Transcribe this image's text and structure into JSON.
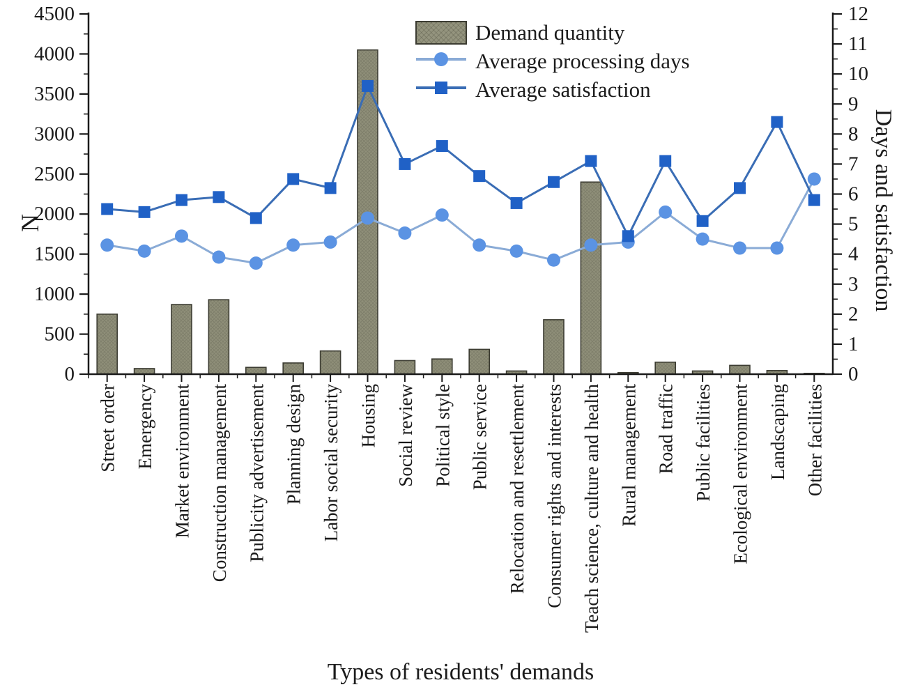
{
  "figure_titles": {
    "x_axis": "Types of residents' demands",
    "left_axis": "N",
    "right_axis": "Days and satisfaction"
  },
  "legend": {
    "items": [
      {
        "label": "Demand quantity",
        "icon": "bar-swatch-icon"
      },
      {
        "label": "Average processing days",
        "icon": "line-circle-icon"
      },
      {
        "label": "Average satisfaction",
        "icon": "line-square-icon"
      }
    ]
  },
  "colors": {
    "bar_fill": "#8F8F79",
    "bar_hatch": "#6e6e5c",
    "bar_border": "#3c3c32",
    "days_line": "#8AABD6",
    "days_marker": "#5B93E3",
    "satisfaction_line": "#3A6DB5",
    "satisfaction_marker": "#2061C6",
    "axis": "#1a1a1a"
  },
  "chart_data": {
    "type": "bar+line",
    "title": "",
    "xlabel": "Types of residents' demands",
    "categories": [
      "Street order",
      "Emergency",
      "Market environment",
      "Construction management",
      "Publicity advertisement",
      "Planning design",
      "Labor social security",
      "Housing",
      "Social review",
      "Political style",
      "Public service",
      "Relocation and resettlement",
      "Consumer rights and interests",
      "Teach science, culture and health",
      "Rural management",
      "Road traffic",
      "Public facilities",
      "Ecological environment",
      "Landscaping",
      "Other facilities"
    ],
    "series": [
      {
        "name": "Demand quantity",
        "type": "bar",
        "axis": "left",
        "values": [
          750,
          70,
          870,
          930,
          85,
          140,
          290,
          4050,
          170,
          190,
          310,
          40,
          680,
          2400,
          20,
          150,
          40,
          110,
          45,
          10
        ]
      },
      {
        "name": "Average processing days",
        "type": "line",
        "marker": "circle",
        "axis": "right",
        "values": [
          4.3,
          4.1,
          4.6,
          3.9,
          3.7,
          4.3,
          4.4,
          5.2,
          4.7,
          5.3,
          4.3,
          4.1,
          3.8,
          4.3,
          4.4,
          5.4,
          4.5,
          4.2,
          4.2,
          6.5
        ]
      },
      {
        "name": "Average satisfaction",
        "type": "line",
        "marker": "square",
        "axis": "right",
        "values": [
          5.5,
          5.4,
          5.8,
          5.9,
          5.2,
          6.5,
          6.2,
          9.6,
          7.0,
          7.6,
          6.6,
          5.7,
          6.4,
          7.1,
          4.6,
          7.1,
          5.1,
          6.2,
          8.4,
          5.8
        ]
      }
    ],
    "left_axis": {
      "label": "N",
      "min": 0,
      "max": 4500,
      "major_step": 500,
      "minor_step": 250
    },
    "right_axis": {
      "label": "Days and satisfaction",
      "min": 0,
      "max": 12,
      "major_step": 1,
      "minor_step": 0.5
    },
    "grid": false,
    "legend_position": "top-center"
  }
}
